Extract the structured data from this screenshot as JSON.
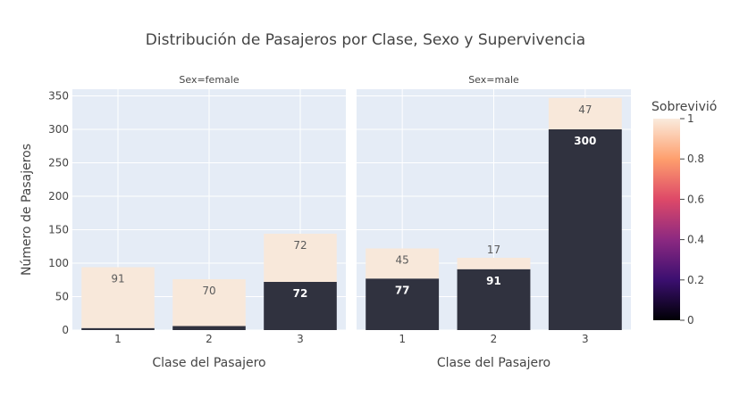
{
  "chart_data": {
    "type": "bar",
    "title": "Distribución de Pasajeros por Clase, Sexo y Supervivencia",
    "ylabel": "Número de Pasajeros",
    "ylim": [
      0,
      360
    ],
    "yticks": [
      0,
      50,
      100,
      150,
      200,
      250,
      300,
      350
    ],
    "stacked": true,
    "colorbar": {
      "title": "Sobrevivió",
      "min": 0,
      "max": 1,
      "ticks": [
        "0",
        "0.2",
        "0.4",
        "0.6",
        "0.8",
        "1"
      ],
      "colorscale": [
        "#0d0887",
        "#000004",
        "#3b0f70",
        "#8c2981",
        "#de4968",
        "#fe9f6d",
        "#fcfdbf"
      ]
    },
    "panels": [
      {
        "title": "Sex=female",
        "xlabel": "Clase del Pasajero",
        "categories": [
          "1",
          "2",
          "3"
        ],
        "series": [
          {
            "survived": 0,
            "color": "#30323f",
            "values": [
              3,
              6,
              72
            ],
            "labels": [
              "3",
              "6",
              "72"
            ]
          },
          {
            "survived": 1,
            "color": "#f8e8da",
            "values": [
              91,
              70,
              72
            ],
            "labels": [
              "91",
              "70",
              "72"
            ]
          }
        ]
      },
      {
        "title": "Sex=male",
        "xlabel": "Clase del Pasajero",
        "categories": [
          "1",
          "2",
          "3"
        ],
        "series": [
          {
            "survived": 0,
            "color": "#30323f",
            "values": [
              77,
              91,
              300
            ],
            "labels": [
              "77",
              "91",
              "300"
            ]
          },
          {
            "survived": 1,
            "color": "#f8e8da",
            "values": [
              45,
              17,
              47
            ],
            "labels": [
              "45",
              "17",
              "47"
            ]
          }
        ]
      }
    ]
  }
}
